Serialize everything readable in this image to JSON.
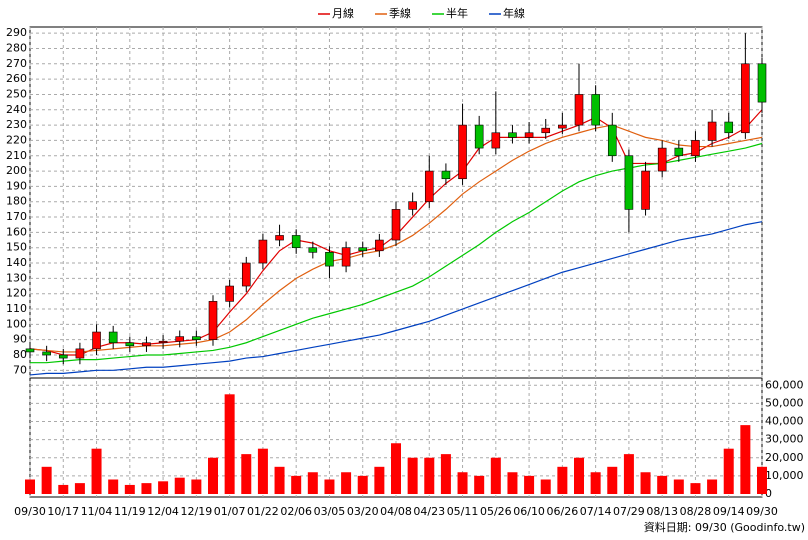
{
  "chart_data": {
    "type": "candlestick",
    "categories": [
      "09/30",
      null,
      "10/17",
      null,
      "11/04",
      null,
      "11/19",
      null,
      "12/04",
      null,
      "12/19",
      null,
      "01/07",
      null,
      "01/22",
      null,
      "02/06",
      null,
      "03/05",
      null,
      "03/20",
      null,
      "04/08",
      null,
      "04/23",
      null,
      "05/11",
      null,
      "05/26",
      null,
      "06/10",
      null,
      "06/26",
      null,
      "07/14",
      null,
      "07/29",
      null,
      "08/13",
      null,
      "08/28",
      null,
      "09/14",
      null,
      "09/30"
    ],
    "open": [
      84,
      82,
      80,
      78,
      84,
      95,
      88,
      86,
      88,
      89,
      92,
      90,
      115,
      125,
      140,
      155,
      158,
      150,
      147,
      138,
      150,
      148,
      155,
      175,
      180,
      200,
      195,
      230,
      215,
      225,
      222,
      225,
      228,
      230,
      250,
      230,
      210,
      175,
      200,
      215,
      210,
      220,
      232,
      225,
      270
    ],
    "high": [
      88,
      86,
      84,
      88,
      100,
      99,
      92,
      92,
      93,
      96,
      96,
      119,
      129,
      144,
      159,
      165,
      162,
      154,
      151,
      154,
      154,
      159,
      180,
      186,
      210,
      205,
      244,
      236,
      252,
      230,
      232,
      234,
      238,
      270,
      256,
      238,
      214,
      206,
      220,
      220,
      226,
      240,
      238,
      290,
      274
    ],
    "low": [
      78,
      76,
      74,
      74,
      80,
      84,
      82,
      82,
      84,
      85,
      86,
      86,
      111,
      121,
      136,
      151,
      146,
      143,
      130,
      134,
      144,
      144,
      151,
      171,
      176,
      191,
      191,
      211,
      211,
      218,
      218,
      221,
      224,
      226,
      226,
      206,
      160,
      171,
      196,
      206,
      206,
      216,
      221,
      221,
      238
    ],
    "close": [
      82,
      80,
      78,
      84,
      95,
      88,
      86,
      88,
      89,
      92,
      90,
      115,
      125,
      140,
      155,
      158,
      150,
      147,
      138,
      150,
      148,
      155,
      175,
      180,
      200,
      195,
      230,
      215,
      225,
      222,
      225,
      228,
      230,
      250,
      230,
      210,
      175,
      200,
      215,
      210,
      220,
      232,
      225,
      270,
      245
    ],
    "up_color": "#ff0000",
    "down_color": "#00c000",
    "series": [
      {
        "name": "月線",
        "color": "#e00000",
        "values": [
          84,
          83,
          80,
          80,
          85,
          88,
          88,
          87,
          88,
          89,
          90,
          95,
          108,
          120,
          135,
          148,
          155,
          153,
          148,
          145,
          148,
          150,
          158,
          170,
          182,
          192,
          200,
          215,
          222,
          222,
          222,
          222,
          226,
          230,
          235,
          228,
          205,
          205,
          205,
          210,
          212,
          218,
          222,
          228,
          240
        ]
      },
      {
        "name": "季線",
        "color": "#e06010",
        "values": [
          84,
          83,
          82,
          82,
          83,
          84,
          85,
          86,
          86,
          87,
          88,
          90,
          95,
          103,
          113,
          122,
          130,
          136,
          141,
          143,
          146,
          148,
          152,
          158,
          166,
          175,
          185,
          193,
          200,
          207,
          213,
          218,
          222,
          225,
          228,
          230,
          226,
          222,
          220,
          217,
          216,
          216,
          218,
          220,
          222
        ]
      },
      {
        "name": "半年",
        "color": "#00c800",
        "values": [
          75,
          75,
          76,
          77,
          77,
          78,
          79,
          80,
          80,
          81,
          82,
          83,
          85,
          88,
          92,
          96,
          100,
          104,
          107,
          110,
          113,
          117,
          121,
          125,
          131,
          138,
          145,
          152,
          160,
          167,
          173,
          180,
          187,
          193,
          197,
          200,
          202,
          204,
          205,
          207,
          209,
          211,
          213,
          215,
          218
        ]
      },
      {
        "name": "年線",
        "color": "#0040c0",
        "values": [
          67,
          68,
          68,
          69,
          70,
          70,
          71,
          72,
          72,
          73,
          74,
          75,
          76,
          78,
          79,
          81,
          83,
          85,
          87,
          89,
          91,
          93,
          96,
          99,
          102,
          106,
          110,
          114,
          118,
          122,
          126,
          130,
          134,
          137,
          140,
          143,
          146,
          149,
          152,
          155,
          157,
          159,
          162,
          165,
          167
        ]
      }
    ],
    "ylim": [
      65,
      294
    ],
    "yticks": [
      70,
      80,
      90,
      100,
      110,
      120,
      130,
      140,
      150,
      160,
      170,
      180,
      190,
      200,
      210,
      220,
      230,
      240,
      250,
      260,
      270,
      280,
      290
    ],
    "grid": true,
    "volume": {
      "color": "#ff0000",
      "ylim": [
        0,
        64000
      ],
      "values": [
        8000,
        15000,
        5000,
        6000,
        25000,
        8000,
        5000,
        6000,
        7000,
        9000,
        8000,
        20000,
        55000,
        22000,
        25000,
        15000,
        10000,
        12000,
        8000,
        12000,
        10000,
        15000,
        28000,
        20000,
        20000,
        22000,
        12000,
        10000,
        20000,
        12000,
        10000,
        8000,
        15000,
        20000,
        12000,
        15000,
        22000,
        12000,
        10000,
        8000,
        6000,
        8000,
        25000,
        38000,
        15000
      ],
      "yticks": [
        0,
        {
          "value": 10000,
          "label": "10,000"
        },
        {
          "value": 20000,
          "label": "20,000"
        },
        {
          "value": 30000,
          "label": "30,000"
        },
        {
          "value": 40000,
          "label": "40,000"
        },
        {
          "value": 50000,
          "label": "50,000"
        },
        {
          "value": 60000,
          "label": "60,000"
        }
      ]
    },
    "note": "資料日期: 09/30 (Goodinfo.tw)"
  }
}
